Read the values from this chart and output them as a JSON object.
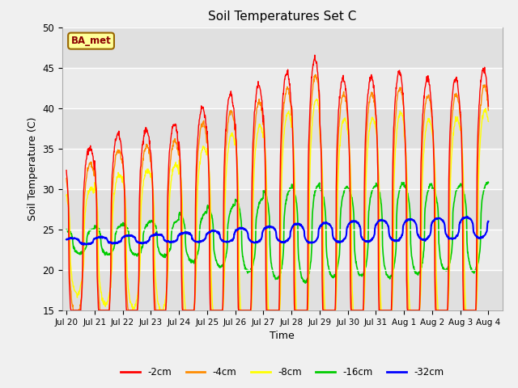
{
  "title": "Soil Temperatures Set C",
  "xlabel": "Time",
  "ylabel": "Soil Temperature (C)",
  "ylim": [
    15,
    50
  ],
  "xlim_start": -0.15,
  "xlim_end": 15.5,
  "yticks": [
    15,
    20,
    25,
    30,
    35,
    40,
    45,
    50
  ],
  "xtick_labels": [
    "Jul 20",
    "Jul 21",
    "Jul 22",
    "Jul 23",
    "Jul 24",
    "Jul 25",
    "Jul 26",
    "Jul 27",
    "Jul 28",
    "Jul 29",
    "Jul 30",
    "Jul 31",
    "Aug 1",
    "Aug 2",
    "Aug 3",
    "Aug 4"
  ],
  "colors": {
    "-2cm": "#ff0000",
    "-4cm": "#ff8c00",
    "-8cm": "#ffff00",
    "-16cm": "#00cc00",
    "-32cm": "#0000ff"
  },
  "legend_labels": [
    "-2cm",
    "-4cm",
    "-8cm",
    "-16cm",
    "-32cm"
  ],
  "annotation_text": "BA_met",
  "annotation_fg": "#8B0000",
  "annotation_bg": "#ffff99",
  "annotation_border": "#996600",
  "fig_bg": "#f0f0f0",
  "plot_bg": "#e8e8e8",
  "grid_color": "#ffffff",
  "band_colors": [
    "#e0e0e0",
    "#ebebeb"
  ],
  "base_temp": 23.5,
  "trend_per_day": 0.12,
  "n_days": 15,
  "peak_hour": 14.0,
  "samples_per_day": 96,
  "amplitudes_2cm": [
    11.5,
    13.0,
    13.5,
    14.0,
    16.0,
    17.5,
    18.5,
    20.0,
    21.5,
    19.0,
    19.0,
    19.5,
    18.5,
    18.5,
    19.5
  ],
  "amplitudes_4cm": [
    9.5,
    11.0,
    11.5,
    12.0,
    14.0,
    15.5,
    16.5,
    18.0,
    19.5,
    17.0,
    17.0,
    17.5,
    16.5,
    16.5,
    17.5
  ],
  "amplitudes_8cm": [
    6.5,
    8.0,
    8.5,
    9.0,
    11.0,
    12.5,
    13.5,
    15.0,
    16.5,
    14.0,
    14.0,
    14.5,
    13.5,
    13.5,
    14.5
  ],
  "amplitudes_16cm": [
    1.5,
    1.8,
    2.0,
    2.2,
    3.0,
    3.8,
    4.5,
    5.5,
    6.0,
    5.5,
    5.5,
    5.8,
    5.5,
    5.2,
    5.5
  ],
  "amplitudes_32cm": [
    0.4,
    0.4,
    0.5,
    0.5,
    0.6,
    0.7,
    0.9,
    1.0,
    1.2,
    1.2,
    1.3,
    1.3,
    1.3,
    1.3,
    1.3
  ],
  "lag_hours_2cm": 0.0,
  "lag_hours_4cm": 0.5,
  "lag_hours_8cm": 1.2,
  "lag_hours_16cm": 3.5,
  "lag_hours_32cm": 9.0,
  "trough_sharpness": 2.5,
  "peak_sharpness": 2.5
}
